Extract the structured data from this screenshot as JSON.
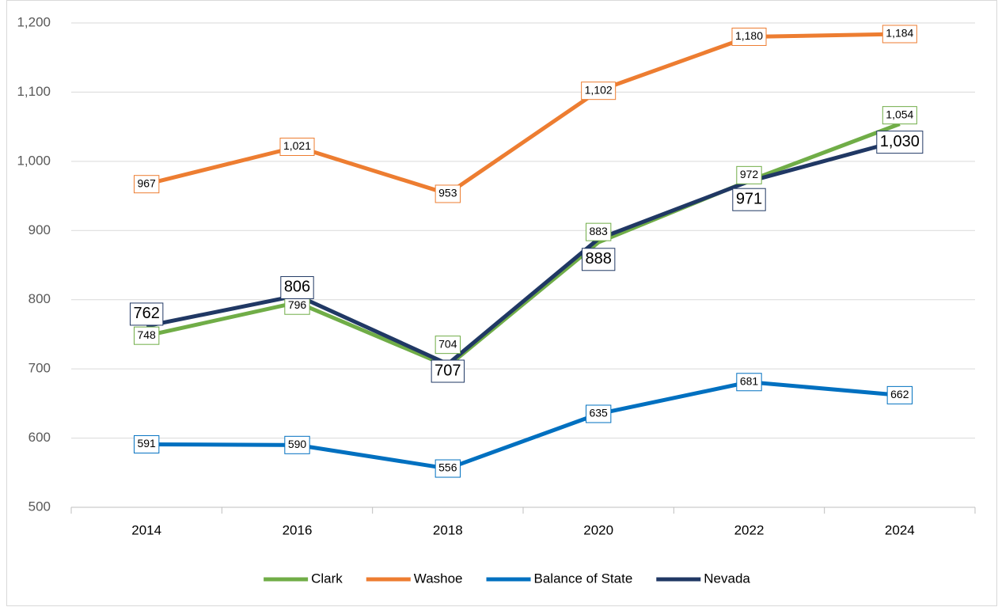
{
  "chart_data": {
    "type": "line",
    "categories": [
      "2014",
      "2016",
      "2018",
      "2020",
      "2022",
      "2024"
    ],
    "series": [
      {
        "name": "Clark",
        "color": "#70ad47",
        "values": [
          748,
          796,
          704,
          883,
          972,
          1054
        ],
        "value_labels": [
          "748",
          "796",
          "704",
          "883",
          "972",
          "1,054"
        ]
      },
      {
        "name": "Washoe",
        "color": "#ed7d31",
        "values": [
          967,
          1021,
          953,
          1102,
          1180,
          1184
        ],
        "value_labels": [
          "967",
          "1,021",
          "953",
          "1,102",
          "1,180",
          "1,184"
        ]
      },
      {
        "name": "Balance of State",
        "color": "#0070c0",
        "values": [
          591,
          590,
          556,
          635,
          681,
          662
        ]
      },
      {
        "name": "Nevada",
        "color": "#203864",
        "values": [
          762,
          806,
          707,
          888,
          971,
          1030
        ],
        "value_labels": [
          "762",
          "806",
          "707",
          "888",
          "971",
          "1,030"
        ]
      }
    ],
    "ylim": [
      500,
      1200
    ],
    "yticks": [
      500,
      600,
      700,
      800,
      900,
      {
        "value": 1000,
        "label": "1,000"
      },
      {
        "value": 1100,
        "label": "1,100"
      },
      {
        "value": 1200,
        "label": "1,200"
      }
    ],
    "grid": true,
    "legend": "bottom"
  }
}
